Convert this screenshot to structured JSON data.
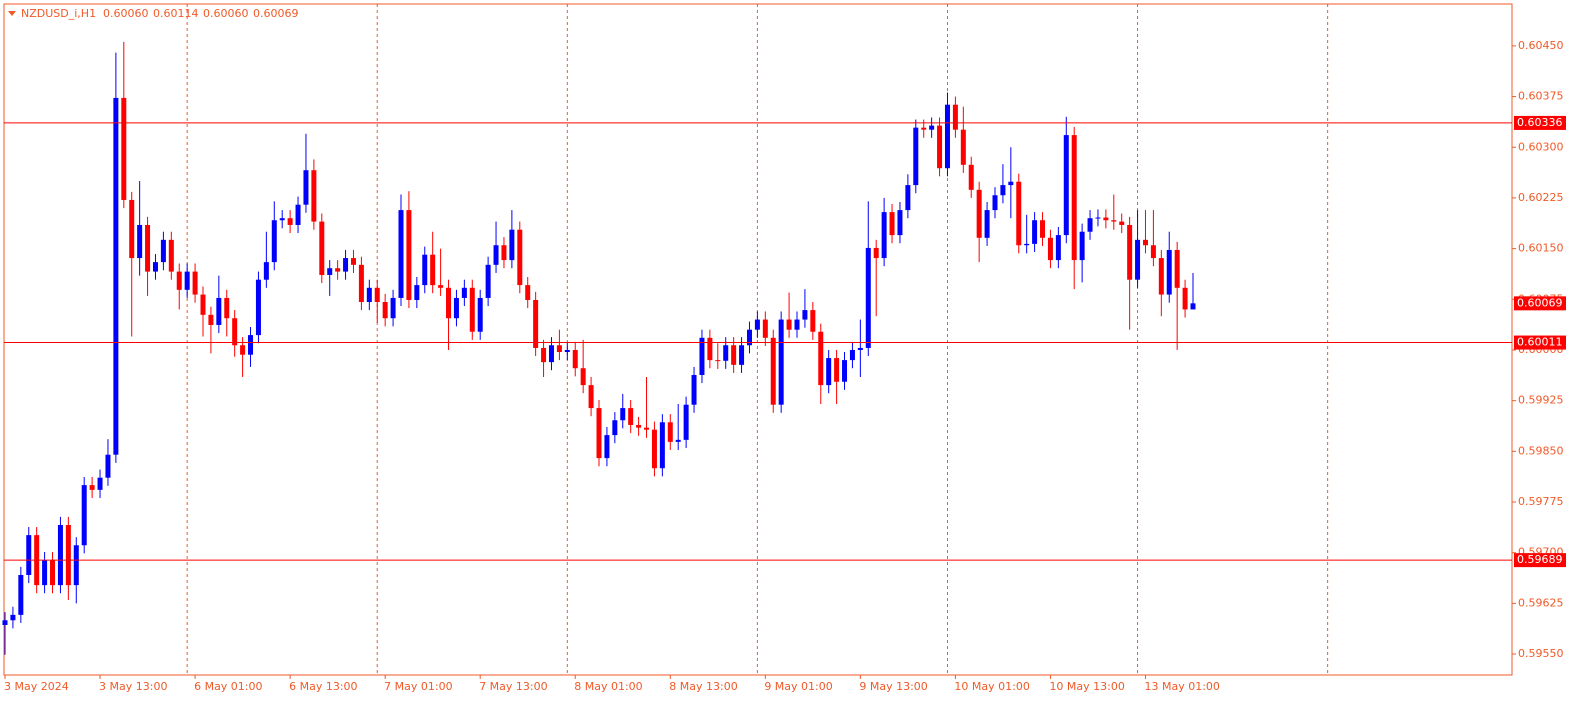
{
  "chart_data": {
    "type": "candlestick",
    "symbol": "NZDUSD_i,H1",
    "header_ohlc": [
      0.6006,
      0.60114,
      0.6006,
      0.60069
    ],
    "header_ohlc_labels": [
      "0.60060",
      "0.60114",
      "0.60060",
      "0.60069"
    ],
    "categories": [
      "3 May 2024",
      null,
      null,
      null,
      null,
      null,
      null,
      null,
      null,
      null,
      null,
      null,
      "3 May 13:00",
      null,
      null,
      null,
      null,
      null,
      null,
      null,
      null,
      null,
      null,
      null,
      "6 May 01:00",
      null,
      null,
      null,
      null,
      null,
      null,
      null,
      null,
      null,
      null,
      null,
      "6 May 13:00",
      null,
      null,
      null,
      null,
      null,
      null,
      null,
      null,
      null,
      null,
      null,
      "7 May 01:00",
      null,
      null,
      null,
      null,
      null,
      null,
      null,
      null,
      null,
      null,
      null,
      "7 May 13:00",
      null,
      null,
      null,
      null,
      null,
      null,
      null,
      null,
      null,
      null,
      null,
      "8 May 01:00",
      null,
      null,
      null,
      null,
      null,
      null,
      null,
      null,
      null,
      null,
      null,
      "8 May 13:00",
      null,
      null,
      null,
      null,
      null,
      null,
      null,
      null,
      null,
      null,
      null,
      "9 May 01:00",
      null,
      null,
      null,
      null,
      null,
      null,
      null,
      null,
      null,
      null,
      null,
      "9 May 13:00",
      null,
      null,
      null,
      null,
      null,
      null,
      null,
      null,
      null,
      null,
      null,
      "10 May 01:00",
      null,
      null,
      null,
      null,
      null,
      null,
      null,
      null,
      null,
      null,
      null,
      "10 May 13:00",
      null,
      null,
      null,
      null,
      null,
      null,
      null,
      null,
      null,
      null,
      null,
      "13 May 01:00",
      null,
      null,
      null,
      null,
      null,
      null
    ],
    "open": [
      0.59593,
      0.596,
      0.59608,
      0.59667,
      0.59726,
      0.59652,
      0.59689,
      0.59652,
      0.59741,
      0.59652,
      0.59711,
      0.598,
      0.59793,
      0.59811,
      0.59845,
      0.60373,
      0.60222,
      0.60136,
      0.60185,
      0.60116,
      0.6013,
      0.60163,
      0.60116,
      0.60089,
      0.60116,
      0.60082,
      0.60052,
      0.60037,
      0.60077,
      0.60047,
      0.60007,
      0.59993,
      0.60022,
      0.60104,
      0.6013,
      0.60192,
      0.60195,
      0.60185,
      0.60215,
      0.60266,
      0.6019,
      0.60111,
      0.60121,
      0.60116,
      0.60136,
      0.60126,
      0.60071,
      0.60092,
      0.60071,
      0.60047,
      0.60077,
      0.60207,
      0.60074,
      0.60096,
      0.60141,
      0.60096,
      0.60092,
      0.60047,
      0.60077,
      0.60092,
      0.60027,
      0.60077,
      0.60126,
      0.60155,
      0.60133,
      0.60178,
      0.60096,
      0.60074,
      0.60003,
      0.59982,
      0.60007,
      0.59997,
      0.6,
      0.59973,
      0.59948,
      0.59914,
      0.5984,
      0.59874,
      0.59896,
      0.59914,
      0.59889,
      0.59885,
      0.59882,
      0.59825,
      0.59893,
      0.59864,
      0.59867,
      0.59919,
      0.59963,
      0.60018,
      0.59985,
      0.59984,
      0.60007,
      0.59978,
      0.60007,
      0.6003,
      0.60045,
      0.60018,
      0.59919,
      0.60045,
      0.6003,
      0.60045,
      0.60059,
      0.60027,
      0.59948,
      0.59988,
      0.59953,
      0.59985,
      0.6,
      0.60003,
      0.60151,
      0.60136,
      0.60204,
      0.6017,
      0.60207,
      0.60244,
      0.60329,
      0.60326,
      0.60332,
      0.60269,
      0.60363,
      0.60326,
      0.60274,
      0.60237,
      0.60166,
      0.60207,
      0.60229,
      0.60244,
      0.60249,
      0.60155,
      0.60157,
      0.60192,
      0.60166,
      0.60133,
      0.6017,
      0.60318,
      0.60133,
      0.60175,
      0.60195,
      0.60196,
      0.60192,
      0.6019,
      0.60185,
      0.60104,
      0.60163,
      0.60155,
      0.60136,
      0.60082,
      0.60148,
      0.60092,
      0.6006
    ],
    "high": [
      0.59612,
      0.5962,
      0.59679,
      0.59738,
      0.59738,
      0.59701,
      0.59701,
      0.59753,
      0.59753,
      0.59723,
      0.59812,
      0.59812,
      0.59823,
      0.59868,
      0.6044,
      0.60456,
      0.60234,
      0.6025,
      0.60197,
      0.60142,
      0.60175,
      0.60175,
      0.60128,
      0.60128,
      0.60128,
      0.60094,
      0.60064,
      0.6011,
      0.60089,
      0.60059,
      0.60019,
      0.60034,
      0.60116,
      0.60175,
      0.6022,
      0.60207,
      0.60207,
      0.60227,
      0.6032,
      0.60282,
      0.60202,
      0.60133,
      0.60133,
      0.60148,
      0.60148,
      0.60138,
      0.60104,
      0.60104,
      0.60083,
      0.60089,
      0.6023,
      0.60235,
      0.60108,
      0.60153,
      0.60175,
      0.6015,
      0.60104,
      0.60089,
      0.60104,
      0.60104,
      0.60089,
      0.60138,
      0.6019,
      0.60167,
      0.60207,
      0.6019,
      0.60108,
      0.60086,
      0.60015,
      0.60019,
      0.6003,
      0.60012,
      0.60012,
      0.60015,
      0.5996,
      0.59926,
      0.59886,
      0.59908,
      0.59935,
      0.59926,
      0.59901,
      0.5996,
      0.59894,
      0.59905,
      0.59905,
      0.5992,
      0.59931,
      0.59975,
      0.6003,
      0.6003,
      0.6001,
      0.60019,
      0.60019,
      0.60019,
      0.60042,
      0.60057,
      0.60057,
      0.6003,
      0.60057,
      0.60085,
      0.60057,
      0.6009,
      0.60071,
      0.60039,
      0.6,
      0.6,
      0.59997,
      0.60012,
      0.60045,
      0.6022,
      0.60163,
      0.60225,
      0.60216,
      0.60219,
      0.6026,
      0.60341,
      0.60341,
      0.60344,
      0.60344,
      0.60381,
      0.60375,
      0.6036,
      0.60286,
      0.60249,
      0.60219,
      0.60241,
      0.60275,
      0.603,
      0.60261,
      0.602,
      0.60204,
      0.60204,
      0.60178,
      0.60182,
      0.60345,
      0.6033,
      0.60187,
      0.60207,
      0.60208,
      0.60208,
      0.6023,
      0.60202,
      0.60197,
      0.60207,
      0.60207,
      0.60207,
      0.60148,
      0.60175,
      0.6016,
      0.60104,
      0.60114
    ],
    "low": [
      0.59549,
      0.59588,
      0.59596,
      0.59655,
      0.5964,
      0.5964,
      0.5964,
      0.5964,
      0.5963,
      0.59625,
      0.59699,
      0.59781,
      0.59781,
      0.59799,
      0.59833,
      0.6021,
      0.6002,
      0.6011,
      0.6008,
      0.60104,
      0.60118,
      0.60104,
      0.6006,
      0.60077,
      0.6007,
      0.6002,
      0.59995,
      0.60025,
      0.6002,
      0.5999,
      0.5996,
      0.59975,
      0.6001,
      0.60092,
      0.60118,
      0.6018,
      0.60173,
      0.60173,
      0.60203,
      0.60178,
      0.60099,
      0.6008,
      0.60104,
      0.60104,
      0.60114,
      0.60059,
      0.60059,
      0.6004,
      0.60035,
      0.60035,
      0.60065,
      0.60062,
      0.60062,
      0.60084,
      0.60084,
      0.6008,
      0.6,
      0.60035,
      0.60065,
      0.60015,
      0.60015,
      0.60065,
      0.60114,
      0.60121,
      0.60121,
      0.60084,
      0.60062,
      0.59991,
      0.5996,
      0.5997,
      0.59985,
      0.59985,
      0.59961,
      0.59936,
      0.59902,
      0.59828,
      0.59828,
      0.59862,
      0.59884,
      0.59877,
      0.59873,
      0.5987,
      0.59813,
      0.59813,
      0.59852,
      0.59852,
      0.59855,
      0.59907,
      0.59951,
      0.59973,
      0.59972,
      0.59972,
      0.59966,
      0.59966,
      0.59995,
      0.60018,
      0.60006,
      0.59907,
      0.59907,
      0.60018,
      0.60018,
      0.60033,
      0.60015,
      0.5992,
      0.59936,
      0.5992,
      0.59941,
      0.59973,
      0.5996,
      0.59991,
      0.6005,
      0.60124,
      0.60158,
      0.60158,
      0.60195,
      0.60232,
      0.60314,
      0.60314,
      0.60257,
      0.60257,
      0.60314,
      0.60262,
      0.60225,
      0.6013,
      0.60154,
      0.60195,
      0.60217,
      0.60195,
      0.60143,
      0.60143,
      0.60145,
      0.60154,
      0.60121,
      0.60121,
      0.60158,
      0.6009,
      0.601,
      0.60163,
      0.60183,
      0.6018,
      0.60178,
      0.60173,
      0.6003,
      0.60092,
      0.60143,
      0.60124,
      0.6005,
      0.6007,
      0.6,
      0.60048,
      0.6006
    ],
    "close": [
      0.596,
      0.59608,
      0.59667,
      0.59726,
      0.59652,
      0.59689,
      0.59652,
      0.59741,
      0.59652,
      0.59711,
      0.598,
      0.59793,
      0.59811,
      0.59845,
      0.60373,
      0.60222,
      0.60136,
      0.60185,
      0.60116,
      0.6013,
      0.60163,
      0.60116,
      0.60089,
      0.60116,
      0.60082,
      0.60052,
      0.60037,
      0.60077,
      0.60047,
      0.60007,
      0.59993,
      0.60022,
      0.60104,
      0.6013,
      0.60192,
      0.60195,
      0.60185,
      0.60215,
      0.60266,
      0.6019,
      0.60111,
      0.60121,
      0.60116,
      0.60136,
      0.60126,
      0.60071,
      0.60092,
      0.60071,
      0.60047,
      0.60077,
      0.60207,
      0.60074,
      0.60096,
      0.60141,
      0.60096,
      0.60092,
      0.60047,
      0.60077,
      0.60092,
      0.60027,
      0.60077,
      0.60126,
      0.60155,
      0.60133,
      0.60178,
      0.60096,
      0.60074,
      0.60003,
      0.59982,
      0.60007,
      0.59997,
      0.6,
      0.59973,
      0.59948,
      0.59914,
      0.5984,
      0.59874,
      0.59896,
      0.59914,
      0.59889,
      0.59885,
      0.59882,
      0.59825,
      0.59893,
      0.59864,
      0.59867,
      0.59919,
      0.59963,
      0.60018,
      0.59985,
      0.59984,
      0.60007,
      0.59978,
      0.60007,
      0.6003,
      0.60045,
      0.60018,
      0.59919,
      0.60045,
      0.6003,
      0.60045,
      0.60059,
      0.60027,
      0.59948,
      0.59988,
      0.59953,
      0.59985,
      0.6,
      0.60003,
      0.60151,
      0.60136,
      0.60204,
      0.6017,
      0.60207,
      0.60244,
      0.60329,
      0.60326,
      0.60332,
      0.60269,
      0.60363,
      0.60326,
      0.60274,
      0.60237,
      0.60166,
      0.60207,
      0.60229,
      0.60244,
      0.60249,
      0.60155,
      0.60157,
      0.60192,
      0.60166,
      0.60133,
      0.6017,
      0.60318,
      0.60133,
      0.60175,
      0.60195,
      0.60196,
      0.60192,
      0.6019,
      0.60185,
      0.60104,
      0.60163,
      0.60155,
      0.60136,
      0.60082,
      0.60148,
      0.60092,
      0.6006,
      0.60069
    ],
    "up_color": "#0000ff",
    "down_color": "#ff0000",
    "axis_color": "#f05a28",
    "line_color": "#ff0000",
    "ylim": [
      0.59519,
      0.60512
    ],
    "yticks": [
      {
        "value": 0.6045,
        "label": "0.60450"
      },
      {
        "value": 0.60375,
        "label": "0.60375"
      },
      {
        "value": 0.603,
        "label": "0.60300"
      },
      {
        "value": 0.60225,
        "label": "0.60225"
      },
      {
        "value": 0.6015,
        "label": "0.60150"
      },
      {
        "value": 0.60075,
        "label": "0.60075"
      },
      {
        "value": 0.6,
        "label": "0.60000"
      },
      {
        "value": 0.59925,
        "label": "0.59925"
      },
      {
        "value": 0.5985,
        "label": "0.59850"
      },
      {
        "value": 0.59775,
        "label": "0.59775"
      },
      {
        "value": 0.597,
        "label": "0.59700"
      },
      {
        "value": 0.59625,
        "label": "0.59625"
      },
      {
        "value": 0.5955,
        "label": "0.59550"
      }
    ],
    "price_lines": [
      {
        "value": 0.60336,
        "label": "0.60336"
      },
      {
        "value": 0.60011,
        "label": "0.60011"
      },
      {
        "value": 0.59689,
        "label": "0.59689"
      }
    ],
    "current_price": {
      "value": 0.60069,
      "label": "0.60069"
    },
    "period_separators": true
  }
}
